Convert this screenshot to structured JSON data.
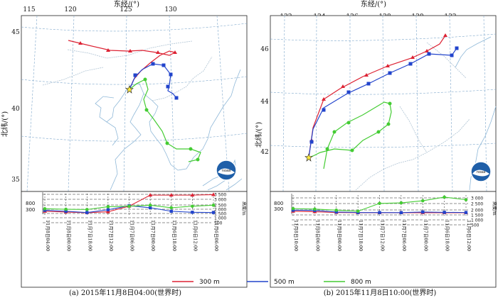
{
  "colors": {
    "r300": "#dd2233",
    "b500": "#2244cc",
    "g800": "#44cc33",
    "grid": "#7fa8cc",
    "coast": "#8fb8d8",
    "border": "#b0c4d4"
  },
  "legend": [
    {
      "label": "300 m",
      "color": "#dd2233"
    },
    {
      "label": "500 m",
      "color": "#2244cc"
    },
    {
      "label": "800 m",
      "color": "#44cc33"
    }
  ],
  "panels": [
    {
      "caption": "(a) 2015年11月8日04:00(世界时)",
      "top_axis_title": "东经/(°)",
      "left_axis_title": "北纬/(°)",
      "lon_ticks": [
        "115",
        "120",
        "125",
        "130"
      ],
      "lat_ticks": [
        "45",
        "40",
        "35"
      ],
      "height_ticks": [
        "3 500",
        "3 000",
        "2 500",
        "2 000",
        "1 500",
        "1 000",
        "500"
      ],
      "height_label": "高度/m",
      "start_heights": [
        "800",
        "300"
      ],
      "time_labels": [
        "11月8日04:00",
        "11月8日00:00",
        "11月7日18:00",
        "11月7日12:00",
        "11月7日06:00",
        "11月7日00:00",
        "11月6日18:00",
        "11月6日12:00",
        "11月6日06:00"
      ],
      "logo": "noaa",
      "chart_data": {
        "type": "line",
        "title": "",
        "xlabel": "",
        "ylabel": "高度/m",
        "x": [
          "11月8日04:00",
          "11月8日00:00",
          "11月7日18:00",
          "11月7日12:00",
          "11月7日06:00",
          "11月7日00:00",
          "11月6日18:00",
          "11月6日12:00",
          "11月6日06:00"
        ],
        "ylim": [
          0,
          3800
        ],
        "series": [
          {
            "name": "300 m",
            "values": [
              300,
              150,
              10,
              200,
              1300,
              3500,
              3500,
              3500,
              3600
            ]
          },
          {
            "name": "500 m",
            "values": [
              500,
              300,
              50,
              600,
              1400,
              1000,
              300,
              100,
              50
            ]
          },
          {
            "name": "800 m",
            "values": [
              800,
              700,
              650,
              1200,
              1300,
              1500,
              1000,
              1300,
              1500
            ]
          }
        ]
      }
    },
    {
      "caption": "(b) 2015年11月8日10:00(世界时)",
      "top_axis_title": "东经/(°)",
      "left_axis_title": "北纬/(°)",
      "lon_ticks": [
        "122",
        "124",
        "126",
        "128",
        "130",
        "132"
      ],
      "lat_ticks": [
        "46",
        "44",
        "42"
      ],
      "height_ticks": [
        "3 000",
        "2 500",
        "2 000",
        "1 500",
        "1 000",
        "500"
      ],
      "height_label": "高度/m",
      "start_heights": [
        "800",
        "300"
      ],
      "time_labels": [
        "11月8日10:00",
        "11月8日06:00",
        "11月8日00:00",
        "11月7日18:00",
        "11月7日12:00",
        "11月7日06:00",
        "11月7日00:00",
        "11月6日18:00",
        "11月6日12:00"
      ],
      "logo": "noaa",
      "chart_data": {
        "type": "line",
        "title": "",
        "xlabel": "",
        "ylabel": "高度/m",
        "x": [
          "11月8日10:00",
          "11月8日06:00",
          "11月8日00:00",
          "11月7日18:00",
          "11月7日12:00",
          "11月7日06:00",
          "11月7日00:00",
          "11月6日18:00",
          "11月6日12:00"
        ],
        "ylim": [
          0,
          3400
        ],
        "series": [
          {
            "name": "300 m",
            "values": [
              300,
              200,
              50,
              10,
              10,
              10,
              10,
              10,
              10
            ]
          },
          {
            "name": "500 m",
            "values": [
              500,
              450,
              150,
              50,
              40,
              30,
              150,
              80,
              50
            ]
          },
          {
            "name": "800 m",
            "values": [
              800,
              700,
              500,
              300,
              1800,
              1900,
              2300,
              3000,
              2500
            ]
          }
        ]
      }
    }
  ]
}
